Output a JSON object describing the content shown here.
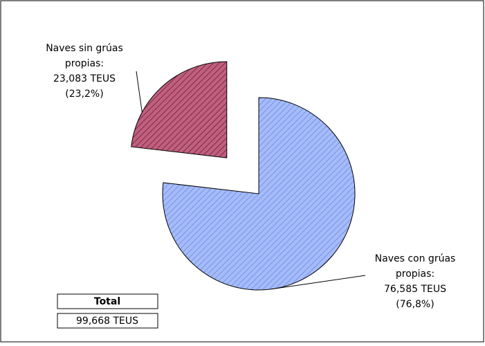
{
  "chart_data": {
    "type": "pie",
    "categories": [
      "Naves sin grúas propias:",
      "Naves con grúas propias:"
    ],
    "values": [
      23083,
      76585
    ],
    "value_labels": [
      "23,083 TEUS",
      "76,585 TEUS"
    ],
    "percent_labels": [
      "(23,2%)",
      "(76,8%)"
    ],
    "colors": [
      "#c0607e",
      "#a4bcf8"
    ],
    "stripe_colors": [
      "#7a2a48",
      "#7f8fe8"
    ],
    "explode": [
      0.5,
      0
    ]
  },
  "total": {
    "label": "Total",
    "value": 99668,
    "value_label": "99,668 TEUS"
  }
}
